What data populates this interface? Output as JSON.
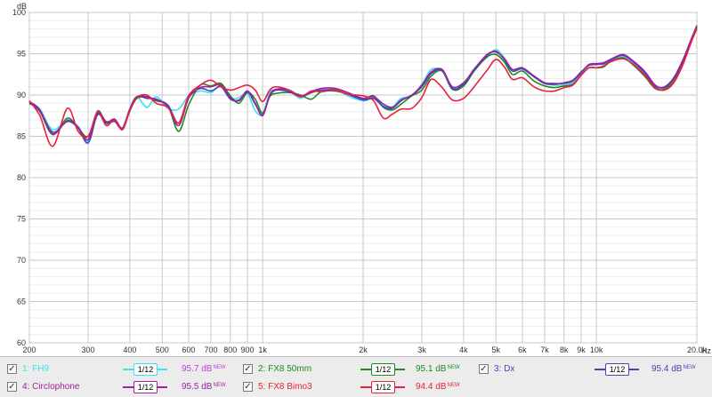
{
  "chart_data": {
    "type": "line",
    "xscale": "log",
    "xlim": [
      200,
      20000
    ],
    "ylim": [
      60,
      100
    ],
    "grid": true,
    "y_unit_label": "dB",
    "x_unit_label": "Hz",
    "xticks": [
      {
        "v": 200,
        "t": "200"
      },
      {
        "v": 300,
        "t": "300"
      },
      {
        "v": 400,
        "t": "400"
      },
      {
        "v": 500,
        "t": "500"
      },
      {
        "v": 600,
        "t": "600"
      },
      {
        "v": 700,
        "t": "700"
      },
      {
        "v": 800,
        "t": "800"
      },
      {
        "v": 900,
        "t": "900"
      },
      {
        "v": 1000,
        "t": "1k"
      },
      {
        "v": 2000,
        "t": "2k"
      },
      {
        "v": 3000,
        "t": "3k"
      },
      {
        "v": 4000,
        "t": "4k"
      },
      {
        "v": 5000,
        "t": "5k"
      },
      {
        "v": 6000,
        "t": "6k"
      },
      {
        "v": 7000,
        "t": "7k"
      },
      {
        "v": 8000,
        "t": "8k"
      },
      {
        "v": 9000,
        "t": "9k"
      },
      {
        "v": 10000,
        "t": "10k"
      },
      {
        "v": 20000,
        "t": "20.0k"
      }
    ],
    "yticks": [
      100,
      95,
      90,
      85,
      80,
      75,
      70,
      65,
      60
    ],
    "minor_y_step": 1,
    "series": [
      {
        "name": "FH9",
        "color": "#3fe0f0",
        "x": [
          200,
          215,
          235,
          260,
          280,
          300,
          320,
          340,
          360,
          380,
          400,
          420,
          450,
          480,
          520,
          560,
          600,
          650,
          700,
          750,
          800,
          850,
          900,
          950,
          1000,
          1050,
          1100,
          1200,
          1300,
          1400,
          1500,
          1650,
          1800,
          2000,
          2150,
          2300,
          2450,
          2600,
          2800,
          3000,
          3200,
          3450,
          3700,
          4000,
          4300,
          4700,
          5000,
          5300,
          5600,
          6000,
          6500,
          7000,
          7500,
          8000,
          8500,
          9000,
          9500,
          10000,
          10500,
          11000,
          12000,
          13000,
          14000,
          15000,
          16000,
          17000,
          18000,
          19000,
          20000
        ],
        "y": [
          89.2,
          88.3,
          85.8,
          87.0,
          86.2,
          84.4,
          88.1,
          86.5,
          87.0,
          86.0,
          88.4,
          89.8,
          88.5,
          89.8,
          88.4,
          88.3,
          89.9,
          90.5,
          90.3,
          91.1,
          89.6,
          89.7,
          90.2,
          88.1,
          87.7,
          90.3,
          90.6,
          90.5,
          89.6,
          90.5,
          90.4,
          90.7,
          89.9,
          89.3,
          89.6,
          88.7,
          88.6,
          89.6,
          89.9,
          91.3,
          93.1,
          92.9,
          90.9,
          91.2,
          93.2,
          94.6,
          95.5,
          94.5,
          93.0,
          93.1,
          92.2,
          91.4,
          91.2,
          91.2,
          91.5,
          92.5,
          93.6,
          93.8,
          93.7,
          94.1,
          94.6,
          93.8,
          92.5,
          91.0,
          90.9,
          92.0,
          93.8,
          96.2,
          98.5
        ]
      },
      {
        "name": "FX8 50mm",
        "color": "#1f8a1f",
        "x": [
          200,
          215,
          235,
          260,
          280,
          300,
          320,
          340,
          360,
          380,
          400,
          420,
          450,
          480,
          520,
          560,
          600,
          650,
          700,
          750,
          800,
          850,
          900,
          950,
          1000,
          1050,
          1100,
          1200,
          1300,
          1400,
          1500,
          1650,
          1800,
          2000,
          2150,
          2300,
          2450,
          2600,
          2800,
          3000,
          3200,
          3450,
          3700,
          4000,
          4300,
          4700,
          5000,
          5300,
          5600,
          6000,
          6500,
          7000,
          7500,
          8000,
          8500,
          9000,
          9500,
          10000,
          10500,
          11000,
          12000,
          13000,
          14000,
          15000,
          16000,
          17000,
          18000,
          19000,
          20000
        ],
        "y": [
          89.1,
          88.0,
          85.2,
          87.2,
          86.0,
          85.0,
          87.8,
          86.8,
          86.9,
          86.0,
          88.1,
          89.6,
          89.7,
          89.3,
          88.7,
          85.6,
          88.8,
          91.2,
          91.1,
          91.4,
          89.9,
          89.0,
          90.3,
          89.5,
          87.8,
          89.8,
          90.2,
          90.3,
          90.0,
          89.5,
          90.4,
          90.5,
          90.1,
          89.5,
          89.9,
          88.5,
          88.2,
          88.9,
          89.9,
          90.6,
          92.3,
          92.9,
          90.7,
          91.1,
          92.9,
          94.6,
          94.9,
          94.0,
          92.5,
          92.9,
          91.7,
          91.1,
          90.9,
          91.1,
          91.3,
          92.4,
          93.3,
          93.3,
          93.4,
          94.0,
          94.5,
          93.5,
          92.2,
          90.8,
          90.7,
          91.7,
          93.6,
          96.0,
          98.0
        ]
      },
      {
        "name": "Dx",
        "color": "#4545b5",
        "x": [
          200,
          215,
          235,
          260,
          280,
          300,
          320,
          340,
          360,
          380,
          400,
          420,
          450,
          480,
          520,
          560,
          600,
          650,
          700,
          750,
          800,
          850,
          900,
          950,
          1000,
          1050,
          1100,
          1200,
          1300,
          1400,
          1500,
          1650,
          1800,
          2000,
          2150,
          2300,
          2450,
          2600,
          2800,
          3000,
          3200,
          3450,
          3700,
          4000,
          4300,
          4700,
          5000,
          5300,
          5600,
          6000,
          6500,
          7000,
          7500,
          8000,
          8500,
          9000,
          9500,
          10000,
          10500,
          11000,
          12000,
          13000,
          14000,
          15000,
          16000,
          17000,
          18000,
          19000,
          20000
        ],
        "y": [
          89.0,
          88.1,
          85.5,
          86.8,
          86.0,
          84.2,
          87.6,
          86.6,
          86.8,
          85.9,
          88.2,
          89.7,
          89.8,
          89.4,
          88.8,
          86.6,
          89.8,
          90.8,
          90.5,
          91.0,
          89.5,
          89.4,
          90.4,
          88.9,
          87.6,
          89.9,
          90.6,
          90.4,
          89.8,
          90.3,
          90.6,
          90.6,
          90.1,
          89.4,
          89.6,
          88.6,
          88.4,
          89.3,
          90.0,
          91.0,
          92.6,
          93.0,
          90.8,
          91.3,
          93.0,
          94.8,
          95.3,
          94.3,
          92.9,
          93.2,
          92.2,
          91.4,
          91.3,
          91.5,
          91.8,
          92.8,
          93.6,
          93.7,
          93.8,
          94.2,
          94.8,
          93.9,
          92.6,
          91.1,
          91.0,
          92.0,
          93.9,
          96.1,
          98.2
        ]
      },
      {
        "name": "Circlophone",
        "color": "#a020a0",
        "x": [
          200,
          215,
          235,
          260,
          280,
          300,
          320,
          340,
          360,
          380,
          400,
          420,
          450,
          480,
          520,
          560,
          600,
          650,
          700,
          750,
          800,
          850,
          900,
          950,
          1000,
          1050,
          1100,
          1200,
          1300,
          1400,
          1500,
          1650,
          1800,
          2000,
          2150,
          2300,
          2450,
          2600,
          2800,
          3000,
          3200,
          3450,
          3700,
          4000,
          4300,
          4700,
          5000,
          5300,
          5600,
          6000,
          6500,
          7000,
          7500,
          8000,
          8500,
          9000,
          9500,
          10000,
          10500,
          11000,
          12000,
          13000,
          14000,
          15000,
          16000,
          17000,
          18000,
          19000,
          20000
        ],
        "y": [
          89.2,
          88.2,
          85.3,
          86.9,
          86.1,
          84.6,
          88.0,
          86.7,
          87.1,
          86.0,
          88.3,
          89.8,
          89.6,
          89.5,
          88.6,
          86.3,
          89.6,
          90.9,
          91.0,
          91.2,
          89.7,
          89.3,
          90.5,
          89.0,
          87.5,
          90.0,
          90.7,
          90.6,
          89.9,
          90.4,
          90.8,
          90.8,
          90.3,
          89.6,
          89.8,
          88.9,
          88.5,
          89.4,
          90.0,
          91.2,
          92.8,
          93.1,
          91.0,
          91.5,
          93.1,
          94.9,
          95.2,
          94.4,
          93.1,
          93.3,
          92.3,
          91.5,
          91.4,
          91.4,
          91.7,
          92.7,
          93.7,
          93.8,
          93.9,
          94.3,
          94.9,
          94.0,
          92.8,
          91.2,
          90.9,
          91.9,
          93.8,
          96.2,
          98.4
        ]
      },
      {
        "name": "FX8 Bimo3",
        "color": "#e8203f",
        "x": [
          200,
          215,
          235,
          260,
          280,
          300,
          320,
          340,
          360,
          380,
          400,
          420,
          450,
          480,
          520,
          560,
          600,
          650,
          700,
          750,
          800,
          850,
          900,
          950,
          1000,
          1050,
          1100,
          1200,
          1300,
          1400,
          1500,
          1650,
          1800,
          2000,
          2150,
          2300,
          2450,
          2600,
          2800,
          3000,
          3200,
          3450,
          3700,
          4000,
          4300,
          4700,
          5000,
          5300,
          5600,
          6000,
          6500,
          7000,
          7500,
          8000,
          8500,
          9000,
          9500,
          10000,
          10500,
          11000,
          12000,
          13000,
          14000,
          15000,
          16000,
          17000,
          18000,
          19000,
          20000
        ],
        "y": [
          89.3,
          87.5,
          83.8,
          88.4,
          85.6,
          85.0,
          87.9,
          86.3,
          87.0,
          85.8,
          88.1,
          89.7,
          90.0,
          89.0,
          88.5,
          86.6,
          89.9,
          91.2,
          91.8,
          91.0,
          90.6,
          90.9,
          91.2,
          90.6,
          89.2,
          90.6,
          91.0,
          90.6,
          89.8,
          90.5,
          90.4,
          90.6,
          90.1,
          89.9,
          89.3,
          87.2,
          87.7,
          88.3,
          88.4,
          89.7,
          91.9,
          90.9,
          89.4,
          89.6,
          91.0,
          93.0,
          94.3,
          93.4,
          91.9,
          92.1,
          91.0,
          90.5,
          90.5,
          90.9,
          91.2,
          92.4,
          93.3,
          93.3,
          93.5,
          94.0,
          94.4,
          93.6,
          92.3,
          90.9,
          90.6,
          91.4,
          93.3,
          95.8,
          98.2
        ]
      }
    ]
  },
  "legend": [
    {
      "label": "1: FH9",
      "color": "#3fe0f0",
      "text_color": "#3fe0f0",
      "smoothing": "1/12",
      "level": "95.7 dB",
      "checked": "✓"
    },
    {
      "label": "2: FX8 50mm",
      "color": "#1f8a1f",
      "text_color": "#1f8a1f",
      "smoothing": "1/12",
      "level": "95.1 dB",
      "checked": "✓"
    },
    {
      "label": "3: Dx",
      "color": "#4545b5",
      "text_color": "#4545b5",
      "smoothing": "1/12",
      "level": "95.4 dB",
      "checked": "✓"
    },
    {
      "label": "4: Circlophone",
      "color": "#a020a0",
      "text_color": "#a020a0",
      "smoothing": "1/12",
      "level": "95.5 dB",
      "checked": "✓"
    },
    {
      "label": "5: FX8 Bimo3",
      "color": "#e8203f",
      "text_color": "#e8203f",
      "smoothing": "1/12",
      "level": "94.4 dB",
      "checked": "✓"
    }
  ],
  "level_suffix": "NEW"
}
